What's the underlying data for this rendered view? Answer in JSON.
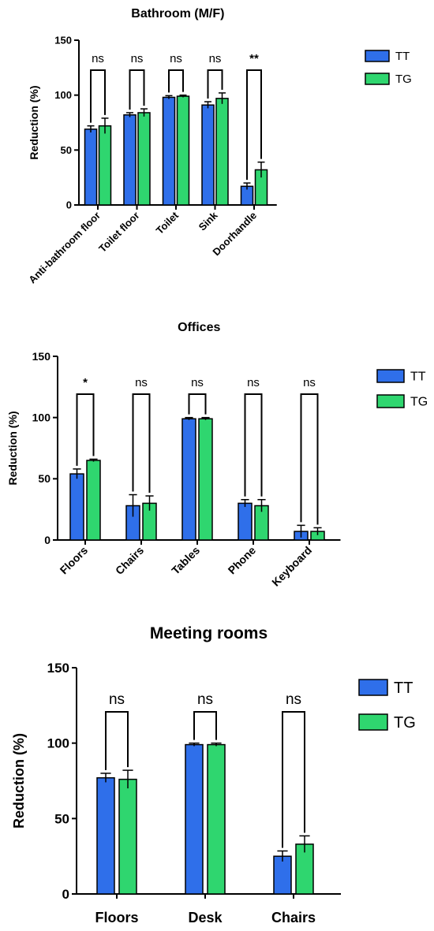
{
  "colors": {
    "TT": "#2f6fea",
    "TG": "#2fd66f",
    "axis": "#000000"
  },
  "chart_data": [
    {
      "type": "bar",
      "title": "Bathroom (M/F)",
      "xlabel": "",
      "ylabel": "Reduction (%)",
      "ylim": [
        0,
        150
      ],
      "yticks": [
        "0",
        "50",
        "100",
        "150"
      ],
      "grid": false,
      "legend_position": "right",
      "categories": [
        "Anti-bathroom floor",
        "Toilet floor",
        "Toilet",
        "Sink",
        "Doorhandle"
      ],
      "series": [
        {
          "name": "TT",
          "values": [
            69,
            82,
            98,
            91,
            17
          ],
          "errors": [
            3,
            2,
            1.5,
            3,
            3
          ]
        },
        {
          "name": "TG",
          "values": [
            72,
            84,
            99,
            97,
            32
          ],
          "errors": [
            7,
            3.5,
            1,
            5,
            7
          ]
        }
      ],
      "significance": [
        "ns",
        "ns",
        "ns",
        "ns",
        "**"
      ]
    },
    {
      "type": "bar",
      "title": "Offices",
      "xlabel": "",
      "ylabel": "Reduction (%)",
      "ylim": [
        0,
        150
      ],
      "yticks": [
        "0",
        "50",
        "100",
        "150"
      ],
      "grid": false,
      "legend_position": "right",
      "categories": [
        "Floors",
        "Chairs",
        "Tables",
        "Phone",
        "Keyboard"
      ],
      "series": [
        {
          "name": "TT",
          "values": [
            54,
            28,
            99,
            30,
            7
          ],
          "errors": [
            4,
            9,
            1,
            3,
            5
          ]
        },
        {
          "name": "TG",
          "values": [
            65,
            30,
            99,
            28,
            7
          ],
          "errors": [
            1,
            6,
            1,
            5,
            3
          ]
        }
      ],
      "significance": [
        "*",
        "ns",
        "ns",
        "ns",
        "ns"
      ]
    },
    {
      "type": "bar",
      "title": "Meeting rooms",
      "xlabel": "",
      "ylabel": "Reduction (%)",
      "ylim": [
        0,
        150
      ],
      "yticks": [
        "0",
        "50",
        "100",
        "150"
      ],
      "grid": false,
      "legend_position": "right",
      "categories": [
        "Floors",
        "Desk",
        "Chairs"
      ],
      "series": [
        {
          "name": "TT",
          "values": [
            77,
            99,
            25
          ],
          "errors": [
            3,
            1,
            3.5
          ]
        },
        {
          "name": "TG",
          "values": [
            76,
            99,
            33
          ],
          "errors": [
            6,
            1,
            5.5
          ]
        }
      ],
      "significance": [
        "ns",
        "ns",
        "ns"
      ]
    }
  ]
}
